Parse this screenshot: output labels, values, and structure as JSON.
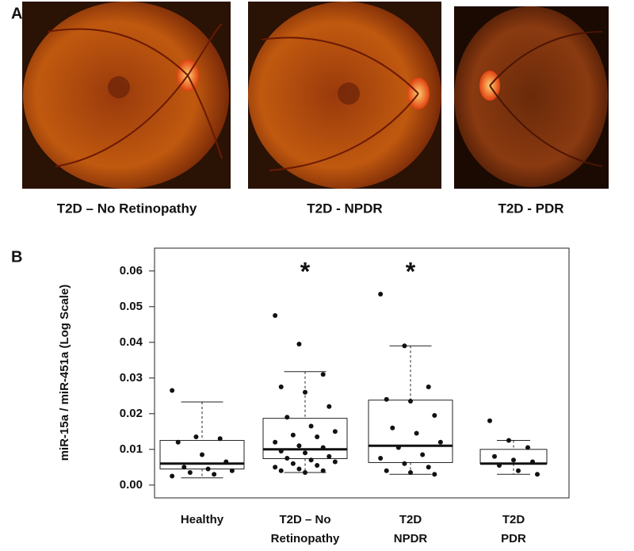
{
  "panel_labels": [
    "A",
    "B"
  ],
  "image_captions": [
    "T2D – No Retinopathy",
    "T2D - NPDR",
    "T2D - PDR"
  ],
  "chart_data": {
    "type": "box",
    "y_label": "miR-15a / miR-451a (Log Scale)",
    "categories": [
      [
        "Healthy"
      ],
      [
        "T2D – No",
        "Retinopathy"
      ],
      [
        "T2D",
        "NPDR"
      ],
      [
        "T2D",
        "PDR"
      ]
    ],
    "boxes": [
      {
        "whislo": 0.002,
        "q1": 0.0045,
        "med": 0.006,
        "q3": 0.0125,
        "whishi": 0.0233
      },
      {
        "whislo": 0.0035,
        "q1": 0.0074,
        "med": 0.01,
        "q3": 0.0187,
        "whishi": 0.0318
      },
      {
        "whislo": 0.003,
        "q1": 0.0063,
        "med": 0.011,
        "q3": 0.0238,
        "whishi": 0.039
      },
      {
        "whislo": 0.003,
        "q1": 0.006,
        "med": 0.006,
        "q3": 0.01,
        "whishi": 0.0125
      }
    ],
    "points": [
      [
        0.0265,
        0.0135,
        0.013,
        0.012,
        0.0085,
        0.0065,
        0.005,
        0.0045,
        0.004,
        0.0035,
        0.003,
        0.0025
      ],
      [
        0.0475,
        0.0395,
        0.031,
        0.0275,
        0.026,
        0.022,
        0.019,
        0.0165,
        0.015,
        0.014,
        0.0135,
        0.012,
        0.011,
        0.0105,
        0.0095,
        0.009,
        0.008,
        0.0075,
        0.007,
        0.0065,
        0.006,
        0.0055,
        0.005,
        0.0045,
        0.004,
        0.004,
        0.0035
      ],
      [
        0.0535,
        0.039,
        0.0275,
        0.024,
        0.0235,
        0.0195,
        0.016,
        0.0145,
        0.012,
        0.0105,
        0.0085,
        0.0075,
        0.006,
        0.005,
        0.004,
        0.0035,
        0.003
      ],
      [
        0.018,
        0.0125,
        0.0105,
        0.008,
        0.007,
        0.0065,
        0.0055,
        0.004,
        0.003
      ]
    ],
    "significance": [
      null,
      "*",
      "*",
      null
    ],
    "ylim": [
      -0.0036,
      0.0664
    ],
    "yticks": [
      {
        "value": 0,
        "label": "0.00"
      },
      {
        "value": 0.01,
        "label": "0.01"
      },
      {
        "value": 0.02,
        "label": "0.02"
      },
      {
        "value": 0.03,
        "label": "0.03"
      },
      {
        "value": 0.04,
        "label": "0.04"
      },
      {
        "value": 0.05,
        "label": "0.05"
      },
      {
        "value": 0.06,
        "label": "0.06"
      }
    ]
  }
}
